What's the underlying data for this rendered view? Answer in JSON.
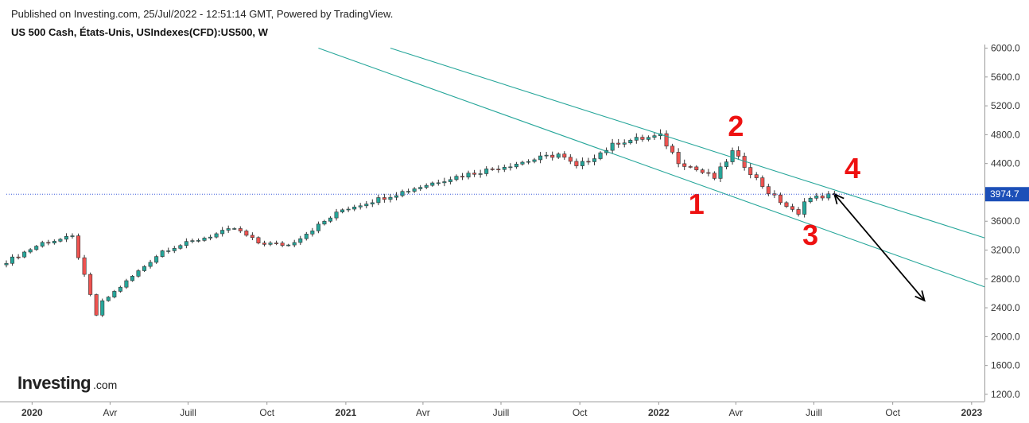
{
  "header": {
    "published": "Published on Investing.com, 25/Jul/2022 - 12:51:14 GMT, Powered by TradingView.",
    "symbol": "US 500 Cash, États-Unis, USIndexes(CFD):US500, W"
  },
  "branding": {
    "logo_main": "Investing",
    "logo_suffix": ".com"
  },
  "chart_data": {
    "type": "candlestick",
    "interval": "W",
    "title": "US 500 Cash, États-Unis, USIndexes(CFD):US500, W",
    "xlabel": "",
    "ylabel": "",
    "x_range": [
      "2019-12-02",
      "2023-01-16"
    ],
    "ylim": [
      1100,
      6050
    ],
    "yticks": [
      1200,
      1600,
      2000,
      2400,
      2800,
      3200,
      3600,
      4000,
      4400,
      4800,
      5200,
      5600,
      6000
    ],
    "ytick_labels": [
      "1200.0",
      "1600.0",
      "2000.0",
      "2400.0",
      "2800.0",
      "3200.0",
      "3600.0",
      "4000.0",
      "4400.0",
      "4800.0",
      "5200.0",
      "5600.0",
      "6000.0"
    ],
    "xticks": [
      {
        "label": "2020",
        "date": "2020-01-01",
        "bold": true
      },
      {
        "label": "Avr",
        "date": "2020-04-01",
        "bold": false
      },
      {
        "label": "Juill",
        "date": "2020-07-01",
        "bold": false
      },
      {
        "label": "Oct",
        "date": "2020-10-01",
        "bold": false
      },
      {
        "label": "2021",
        "date": "2021-01-01",
        "bold": true
      },
      {
        "label": "Avr",
        "date": "2021-04-01",
        "bold": false
      },
      {
        "label": "Juill",
        "date": "2021-07-01",
        "bold": false
      },
      {
        "label": "Oct",
        "date": "2021-10-01",
        "bold": false
      },
      {
        "label": "2022",
        "date": "2022-01-01",
        "bold": true
      },
      {
        "label": "Avr",
        "date": "2022-04-01",
        "bold": false
      },
      {
        "label": "Juill",
        "date": "2022-07-01",
        "bold": false
      },
      {
        "label": "Oct",
        "date": "2022-10-01",
        "bold": false
      },
      {
        "label": "2023",
        "date": "2023-01-01",
        "bold": true
      }
    ],
    "last_price": {
      "value": 3974.7,
      "label": "3974.7"
    },
    "up_color": "#26a69a",
    "down_color": "#ef5350",
    "anchors": [
      {
        "date": "2019-12-02",
        "close": 3040
      },
      {
        "date": "2020-01-13",
        "close": 3300
      },
      {
        "date": "2020-02-17",
        "close": 3380
      },
      {
        "date": "2020-03-16",
        "close": 2300
      },
      {
        "date": "2020-03-23",
        "close": 2480
      },
      {
        "date": "2020-06-01",
        "close": 3190
      },
      {
        "date": "2020-08-24",
        "close": 3500
      },
      {
        "date": "2020-09-21",
        "close": 3300
      },
      {
        "date": "2020-10-26",
        "close": 3270
      },
      {
        "date": "2020-12-28",
        "close": 3760
      },
      {
        "date": "2021-04-26",
        "close": 4180
      },
      {
        "date": "2021-09-06",
        "close": 4530
      },
      {
        "date": "2021-09-27",
        "close": 4350
      },
      {
        "date": "2021-11-15",
        "close": 4700
      },
      {
        "date": "2022-01-03",
        "close": 4780
      },
      {
        "date": "2022-01-24",
        "close": 4430
      },
      {
        "date": "2022-03-07",
        "close": 4200
      },
      {
        "date": "2022-03-28",
        "close": 4560
      },
      {
        "date": "2022-05-09",
        "close": 4000
      },
      {
        "date": "2022-06-13",
        "close": 3680
      },
      {
        "date": "2022-06-20",
        "close": 3900
      },
      {
        "date": "2022-07-25",
        "close": 3975
      }
    ],
    "trendlines": [
      {
        "p1": {
          "date": "2021-02-22",
          "value": 6000
        },
        "p2": {
          "date": "2023-01-16",
          "value": 3370
        }
      },
      {
        "p1": {
          "date": "2020-11-30",
          "value": 6000
        },
        "p2": {
          "date": "2023-01-16",
          "value": 2690
        }
      }
    ],
    "arrow": {
      "from": {
        "date": "2022-07-25",
        "value": 3974.7
      },
      "to": {
        "date": "2022-11-07",
        "value": 2500
      }
    },
    "annotations": [
      {
        "label": "1",
        "date": "2022-02-14",
        "value": 3700
      },
      {
        "label": "2",
        "date": "2022-04-01",
        "value": 4780
      },
      {
        "label": "3",
        "date": "2022-06-27",
        "value": 3270
      },
      {
        "label": "4",
        "date": "2022-08-15",
        "value": 4200
      }
    ]
  }
}
